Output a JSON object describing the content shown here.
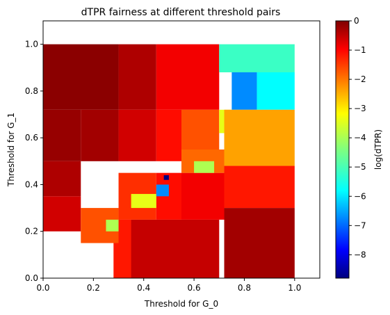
{
  "chart_data": {
    "type": "heatmap",
    "title": "dTPR fairness at different threshold pairs",
    "xlabel": "Threshold for G_0",
    "ylabel": "Threshold for G_1",
    "xlim": [
      0,
      1.1
    ],
    "ylim": [
      0,
      1.1
    ],
    "x_ticks": [
      "0.0",
      "0.2",
      "0.4",
      "0.6",
      "0.8",
      "1.0"
    ],
    "y_ticks": [
      "0.0",
      "0.2",
      "0.4",
      "0.6",
      "0.8",
      "1.0"
    ],
    "grid": false,
    "colormap": "jet",
    "colorbar": {
      "label": "log(dTPR)",
      "range": [
        -8.8,
        0
      ],
      "ticks": [
        "0",
        "−1",
        "−2",
        "−3",
        "−4",
        "−5",
        "−6",
        "−7",
        "−8"
      ]
    },
    "cell_width": 0.05,
    "regions": [
      {
        "x0": 0.0,
        "x1": 0.3,
        "y0": 0.72,
        "y1": 1.0,
        "value": -0.1
      },
      {
        "x0": 0.0,
        "x1": 0.15,
        "y0": 0.5,
        "y1": 0.72,
        "value": -0.2
      },
      {
        "x0": 0.0,
        "x1": 0.15,
        "y0": 0.35,
        "y1": 0.5,
        "value": -0.4
      },
      {
        "x0": 0.0,
        "x1": 0.15,
        "y0": 0.2,
        "y1": 0.35,
        "value": -0.7
      },
      {
        "x0": 0.15,
        "x1": 0.3,
        "y0": 0.5,
        "y1": 0.72,
        "value": -0.3
      },
      {
        "x0": 0.3,
        "x1": 0.45,
        "y0": 0.72,
        "y1": 1.0,
        "value": -0.4
      },
      {
        "x0": 0.45,
        "x1": 0.7,
        "y0": 0.72,
        "y1": 1.0,
        "value": -1.0
      },
      {
        "x0": 0.3,
        "x1": 0.45,
        "y0": 0.5,
        "y1": 0.72,
        "value": -0.7
      },
      {
        "x0": 0.45,
        "x1": 0.55,
        "y0": 0.5,
        "y1": 0.72,
        "value": -1.2
      },
      {
        "x0": 0.55,
        "x1": 0.7,
        "y0": 0.55,
        "y1": 0.72,
        "value": -1.8
      },
      {
        "x0": 0.7,
        "x1": 0.75,
        "y0": 0.62,
        "y1": 0.72,
        "value": -3.5
      },
      {
        "x0": 0.7,
        "x1": 1.0,
        "y0": 0.88,
        "y1": 1.0,
        "value": -5.0
      },
      {
        "x0": 0.75,
        "x1": 0.85,
        "y0": 0.72,
        "y1": 0.88,
        "value": -6.5
      },
      {
        "x0": 0.85,
        "x1": 1.0,
        "y0": 0.72,
        "y1": 0.88,
        "value": -5.5
      },
      {
        "x0": 0.72,
        "x1": 1.0,
        "y0": 0.48,
        "y1": 0.72,
        "value": -2.5
      },
      {
        "x0": 0.72,
        "x1": 1.0,
        "y0": 0.3,
        "y1": 0.48,
        "value": -1.3
      },
      {
        "x0": 0.72,
        "x1": 1.0,
        "y0": 0.0,
        "y1": 0.3,
        "value": -0.3
      },
      {
        "x0": 0.3,
        "x1": 0.7,
        "y0": 0.0,
        "y1": 0.25,
        "value": -0.6
      },
      {
        "x0": 0.28,
        "x1": 0.35,
        "y0": 0.0,
        "y1": 0.25,
        "value": -1.3
      },
      {
        "x0": 0.55,
        "x1": 0.72,
        "y0": 0.25,
        "y1": 0.45,
        "value": -1.0
      },
      {
        "x0": 0.55,
        "x1": 0.72,
        "y0": 0.45,
        "y1": 0.55,
        "value": -2.0
      },
      {
        "x0": 0.15,
        "x1": 0.3,
        "y0": 0.15,
        "y1": 0.3,
        "value": -1.8
      },
      {
        "x0": 0.3,
        "x1": 0.45,
        "y0": 0.25,
        "y1": 0.45,
        "value": -1.5
      },
      {
        "x0": 0.45,
        "x1": 0.55,
        "y0": 0.25,
        "y1": 0.45,
        "value": -1.2
      },
      {
        "x0": 0.6,
        "x1": 0.68,
        "y0": 0.45,
        "y1": 0.5,
        "value": -4.0
      },
      {
        "x0": 0.35,
        "x1": 0.45,
        "y0": 0.3,
        "y1": 0.36,
        "value": -3.5
      },
      {
        "x0": 0.25,
        "x1": 0.3,
        "y0": 0.2,
        "y1": 0.25,
        "value": -4.0
      },
      {
        "x0": 0.45,
        "x1": 0.5,
        "y0": 0.35,
        "y1": 0.4,
        "value": -6.5
      },
      {
        "x0": 0.48,
        "x1": 0.5,
        "y0": 0.42,
        "y1": 0.44,
        "value": -8.8
      }
    ]
  }
}
